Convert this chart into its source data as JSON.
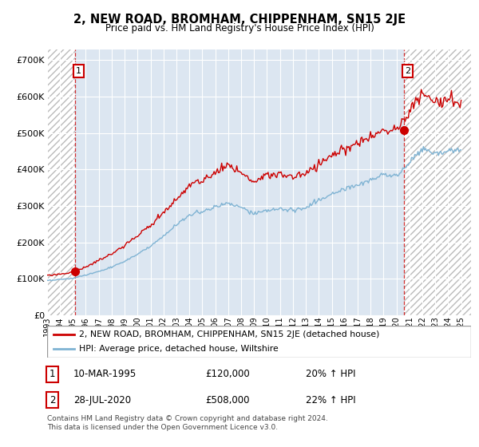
{
  "title": "2, NEW ROAD, BROMHAM, CHIPPENHAM, SN15 2JE",
  "subtitle": "Price paid vs. HM Land Registry's House Price Index (HPI)",
  "legend_line1": "2, NEW ROAD, BROMHAM, CHIPPENHAM, SN15 2JE (detached house)",
  "legend_line2": "HPI: Average price, detached house, Wiltshire",
  "footnote": "Contains HM Land Registry data © Crown copyright and database right 2024.\nThis data is licensed under the Open Government Licence v3.0.",
  "transaction1_label": "1",
  "transaction1_date": "10-MAR-1995",
  "transaction1_price": "£120,000",
  "transaction1_hpi": "20% ↑ HPI",
  "transaction2_label": "2",
  "transaction2_date": "28-JUL-2020",
  "transaction2_price": "£508,000",
  "transaction2_hpi": "22% ↑ HPI",
  "price_color": "#cc0000",
  "hpi_color": "#7fb3d3",
  "background_color": "#dce6f1",
  "ylim": [
    0,
    730000
  ],
  "yticks": [
    0,
    100000,
    200000,
    300000,
    400000,
    500000,
    600000,
    700000
  ],
  "transaction1_x": 1995.19,
  "transaction1_y": 120000,
  "transaction2_x": 2020.58,
  "transaction2_y": 508000,
  "xlim_start": 1993.0,
  "xlim_end": 2025.75
}
